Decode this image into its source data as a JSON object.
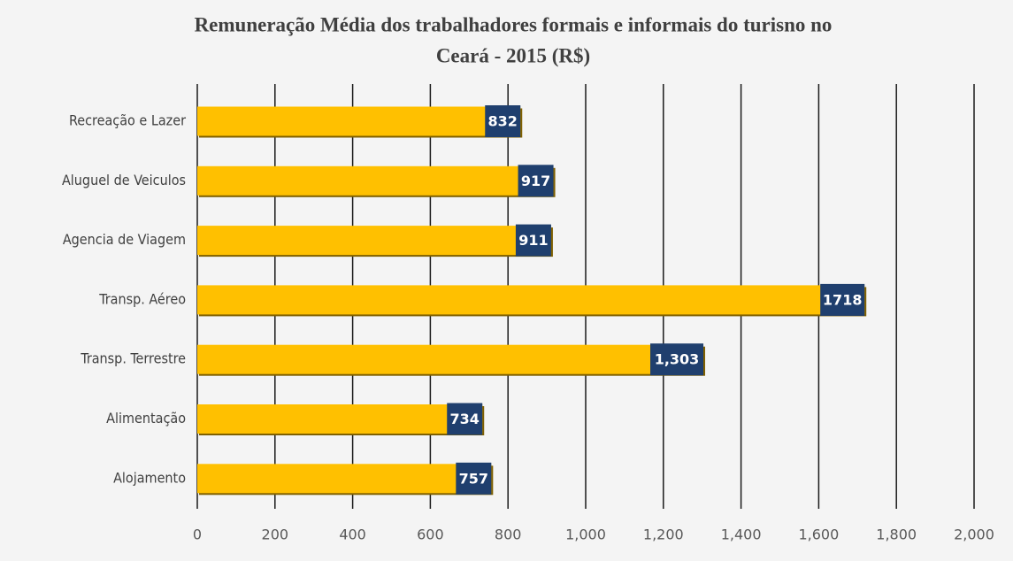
{
  "chart_data": {
    "type": "bar",
    "orientation": "horizontal",
    "title": [
      "Remuneração Média dos trabalhadores formais e informais do turisno no",
      "Ceará - 2015 (R$)"
    ],
    "categories": [
      "Recreação e Lazer",
      "Aluguel de Veiculos",
      "Agencia de Viagem",
      "Transp. Aéreo",
      "Transp. Terrestre",
      "Alimentação",
      "Alojamento"
    ],
    "values": [
      832,
      917,
      911,
      1718,
      1303,
      734,
      757
    ],
    "value_labels": [
      "832",
      "917",
      "911",
      "1718",
      "1,303",
      "734",
      "757"
    ],
    "color": "#ffc000",
    "label_color": "#1f3f6e",
    "xlim": [
      0,
      2000
    ],
    "xticks": [
      0,
      200,
      400,
      600,
      800,
      {
        "value": 1000,
        "label": "1,000"
      },
      {
        "value": 1200,
        "label": "1,200"
      },
      {
        "value": 1400,
        "label": "1,400"
      },
      {
        "value": 1600,
        "label": "1,600"
      },
      {
        "value": 1800,
        "label": "1,800"
      },
      {
        "value": 2000,
        "label": "2,000"
      }
    ],
    "grid": true
  }
}
